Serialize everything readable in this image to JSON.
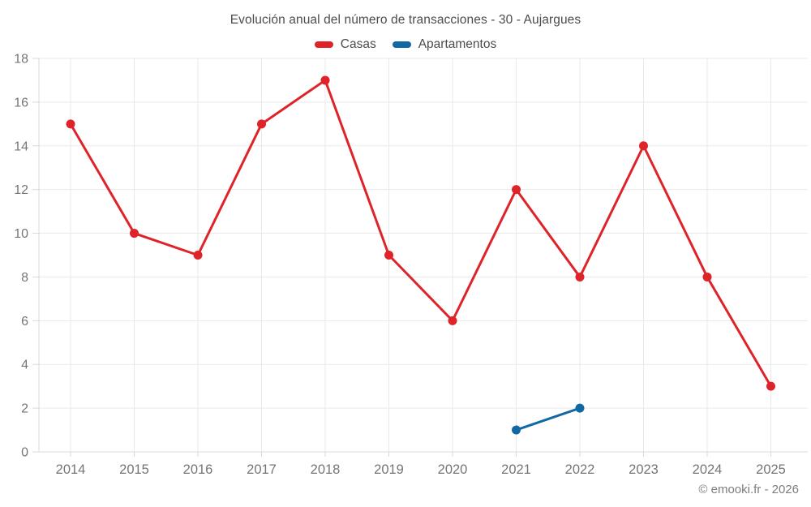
{
  "title": "Evolución anual del número de transacciones - 30 - Aujargues",
  "footer": "© emooki.fr - 2026",
  "legend": [
    {
      "label": "Casas",
      "color": "#de2329"
    },
    {
      "label": "Apartamentos",
      "color": "#1268a3"
    }
  ],
  "colors": {
    "grid": "#e9e9e9",
    "axis": "#d9d9d9",
    "tick_label": "#757575",
    "title_text": "#4c4c4c",
    "footer_text": "#7d7d7d",
    "background": "#ffffff"
  },
  "chart_data": {
    "type": "line",
    "title": "Evolución anual del número de transacciones - 30 - Aujargues",
    "xlabel": "",
    "ylabel": "",
    "categories": [
      "2014",
      "2015",
      "2016",
      "2017",
      "2018",
      "2019",
      "2020",
      "2021",
      "2022",
      "2023",
      "2024",
      "2025"
    ],
    "series": [
      {
        "name": "Casas",
        "color": "#de2329",
        "values": [
          15,
          10,
          9,
          15,
          17,
          9,
          6,
          12,
          8,
          14,
          8,
          3
        ]
      },
      {
        "name": "Apartamentos",
        "color": "#1268a3",
        "values": [
          null,
          null,
          null,
          null,
          null,
          null,
          null,
          1,
          2,
          null,
          null,
          null
        ]
      }
    ],
    "ylim": [
      0,
      18
    ],
    "ytick_step": 2,
    "grid": true,
    "legend_position": "top",
    "marker_radius": 5.5,
    "line_width": 3
  }
}
